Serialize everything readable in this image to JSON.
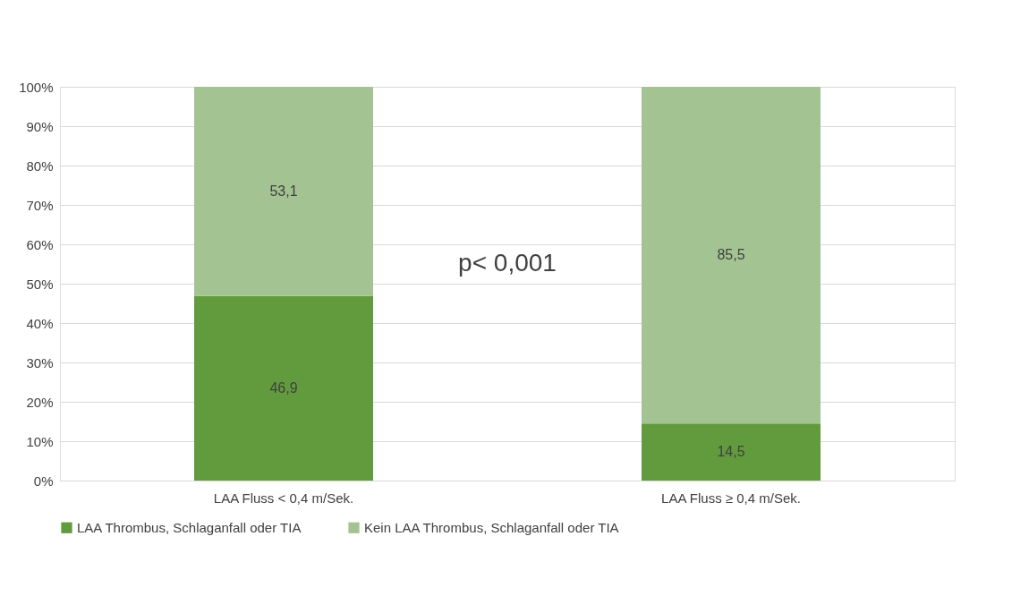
{
  "chart_data": {
    "type": "bar",
    "stacked": true,
    "categories": [
      "LAA Fluss < 0,4 m/Sek.",
      "LAA Fluss ≥ 0,4 m/Sek."
    ],
    "series": [
      {
        "name": "LAA Thrombus, Schlaganfall oder TIA",
        "color": "#629b3d",
        "values": [
          46.9,
          14.5
        ],
        "value_labels": [
          "46,9",
          "14,5"
        ]
      },
      {
        "name": "Kein LAA Thrombus, Schlaganfall oder TIA",
        "color": "#a3c492",
        "values": [
          53.1,
          85.5
        ],
        "value_labels": [
          "53,1",
          "85,5"
        ]
      }
    ],
    "ylim": [
      0,
      100
    ],
    "yticks": [
      {
        "value": 0,
        "label": "0%"
      },
      {
        "value": 10,
        "label": "10%"
      },
      {
        "value": 20,
        "label": "20%"
      },
      {
        "value": 30,
        "label": "30%"
      },
      {
        "value": 40,
        "label": "40%"
      },
      {
        "value": 50,
        "label": "50%"
      },
      {
        "value": 60,
        "label": "60%"
      },
      {
        "value": 70,
        "label": "70%"
      },
      {
        "value": 80,
        "label": "80%"
      },
      {
        "value": 90,
        "label": "90%"
      },
      {
        "value": 100,
        "label": "100%"
      }
    ],
    "annotations": [
      "p< 0,001"
    ],
    "grid": "y",
    "legend": "bottom"
  }
}
